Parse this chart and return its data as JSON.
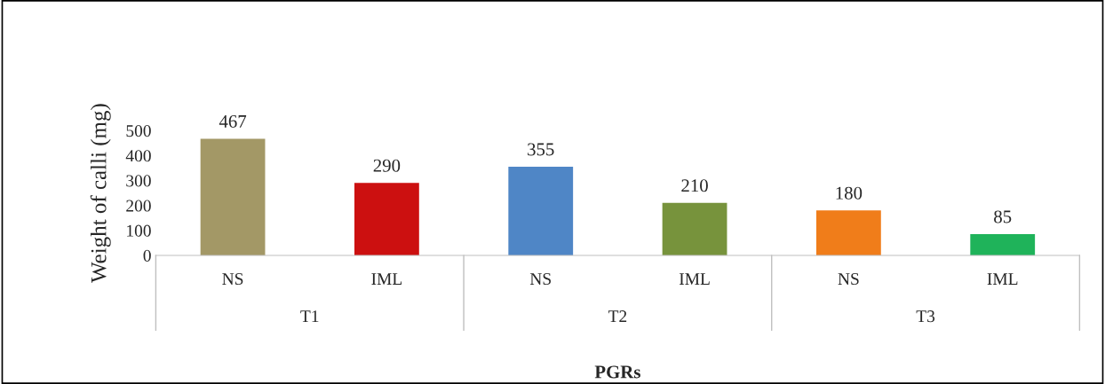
{
  "chart_data": {
    "type": "bar",
    "xlabel": "PGRs",
    "ylabel": "Weight of calli (mg)",
    "categories": [
      "NS",
      "IML",
      "NS",
      "IML",
      "NS",
      "IML"
    ],
    "values": [
      467,
      290,
      355,
      210,
      180,
      85
    ],
    "colors": [
      "#a39866",
      "#cc1010",
      "#4f86c6",
      "#77933c",
      "#f07d1a",
      "#1fb35a"
    ],
    "annotations": [
      "T1",
      "T2",
      "T3"
    ],
    "ylim": [
      0,
      500
    ],
    "yticks": [
      0,
      100,
      200,
      300,
      400,
      500
    ],
    "data_labels": true,
    "grid": false,
    "legend": false
  }
}
